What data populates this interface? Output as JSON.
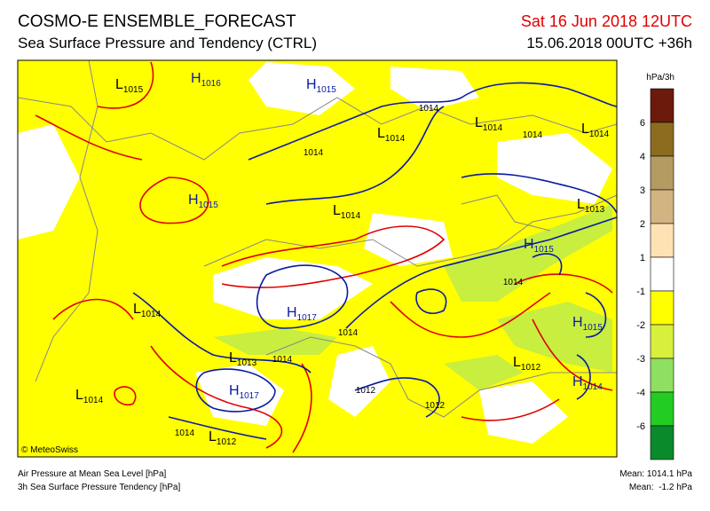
{
  "header": {
    "title": "COSMO-E ENSEMBLE_FORECAST",
    "subtitle": "Sea Surface Pressure and Tendency (CTRL)",
    "valid_time": "Sat 16 Jun 2018 12UTC",
    "run_time": "15.06.2018 00UTC +36h"
  },
  "colorbar": {
    "unit": "hPa/3h",
    "colors": [
      "#6b1a0c",
      "#8c6d1f",
      "#b39b62",
      "#d2b482",
      "#ffe2b4",
      "#ffffff",
      "#ffff00",
      "#d8f03c",
      "#8fe060",
      "#22cc22",
      "#0a8a2a"
    ],
    "labels": [
      "6",
      "4",
      "3",
      "2",
      "1",
      "-1",
      "-2",
      "-3",
      "-4",
      "-6"
    ]
  },
  "pressure_centers": [
    {
      "type": "L",
      "value": "1015"
    },
    {
      "type": "H",
      "value": "1016"
    },
    {
      "type": "H",
      "value": "1015"
    },
    {
      "type": "L",
      "value": "1014"
    },
    {
      "type": "L",
      "value": "1014"
    },
    {
      "type": "L",
      "value": "1014"
    },
    {
      "type": "H",
      "value": "1015"
    },
    {
      "type": "L",
      "value": "1014"
    },
    {
      "type": "L",
      "value": "1013"
    },
    {
      "type": "H",
      "value": "1015"
    },
    {
      "type": "L",
      "value": "1014"
    },
    {
      "type": "H",
      "value": "1017"
    },
    {
      "type": "H",
      "value": "1015"
    },
    {
      "type": "L",
      "value": "1013"
    },
    {
      "type": "L",
      "value": "1012"
    },
    {
      "type": "L",
      "value": "1014"
    },
    {
      "type": "H",
      "value": "1017"
    },
    {
      "type": "H",
      "value": "1014"
    },
    {
      "type": "L",
      "value": "1012"
    }
  ],
  "isobar_labels": [
    "1014",
    "1014",
    "1014",
    "1014",
    "1014",
    "1014",
    "1014",
    "1012",
    "1012"
  ],
  "copyright": "© MeteoSwiss",
  "footer": {
    "left": [
      "Air Pressure at Mean Sea Level [hPa]",
      "3h Sea Surface Pressure Tendency [hPa]"
    ],
    "right": [
      "Mean: 1014.1 hPa",
      "Mean:  -1.2 hPa"
    ]
  }
}
